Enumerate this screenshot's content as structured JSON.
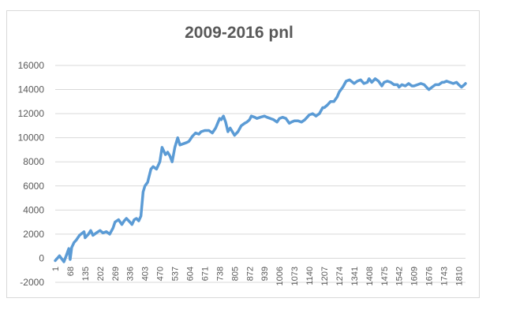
{
  "chart_data": {
    "type": "line",
    "title": "2009-2016 pnl",
    "xlabel": "",
    "ylabel": "",
    "xlim": [
      1,
      1840
    ],
    "ylim": [
      -2000,
      16000
    ],
    "y_ticks": [
      -2000,
      0,
      2000,
      4000,
      6000,
      8000,
      10000,
      12000,
      14000,
      16000
    ],
    "x_tick_labels": [
      "1",
      "68",
      "135",
      "202",
      "269",
      "336",
      "403",
      "470",
      "537",
      "604",
      "671",
      "738",
      "805",
      "872",
      "939",
      "1006",
      "1073",
      "1140",
      "1207",
      "1274",
      "1341",
      "1408",
      "1475",
      "1542",
      "1609",
      "1676",
      "1743",
      "1810"
    ],
    "grid": "horizontal",
    "legend": "none",
    "series_color": "#5b9bd5",
    "series": [
      {
        "x": [
          1,
          20,
          40,
          50,
          62,
          68,
          75,
          85,
          95,
          110,
          130,
          135,
          150,
          160,
          170,
          185,
          202,
          215,
          230,
          245,
          260,
          269,
          285,
          300,
          310,
          320,
          336,
          345,
          355,
          365,
          375,
          385,
          395,
          403,
          415,
          430,
          440,
          455,
          470,
          480,
          495,
          505,
          515,
          525,
          537,
          550,
          560,
          575,
          590,
          600,
          604,
          615,
          630,
          645,
          655,
          671,
          690,
          705,
          720,
          738,
          745,
          755,
          765,
          775,
          785,
          795,
          805,
          820,
          835,
          850,
          860,
          872,
          880,
          895,
          905,
          920,
          939,
          950,
          965,
          980,
          995,
          1006,
          1020,
          1035,
          1050,
          1060,
          1073,
          1090,
          1105,
          1120,
          1140,
          1155,
          1170,
          1185,
          1200,
          1207,
          1220,
          1235,
          1250,
          1265,
          1274,
          1290,
          1305,
          1320,
          1341,
          1355,
          1370,
          1385,
          1400,
          1408,
          1420,
          1435,
          1450,
          1465,
          1475,
          1490,
          1505,
          1520,
          1535,
          1542,
          1555,
          1570,
          1585,
          1600,
          1609,
          1625,
          1640,
          1655,
          1670,
          1676,
          1690,
          1705,
          1720,
          1735,
          1743,
          1755,
          1770,
          1785,
          1800,
          1810,
          1822,
          1835,
          1840
        ],
        "y": [
          -200,
          200,
          -300,
          200,
          800,
          -100,
          900,
          1300,
          1500,
          1900,
          2200,
          1700,
          2000,
          2300,
          1900,
          2100,
          2300,
          2100,
          2200,
          2000,
          2500,
          3000,
          3200,
          2800,
          3100,
          3300,
          3000,
          2800,
          3200,
          3300,
          3100,
          3500,
          5500,
          6000,
          6300,
          7400,
          7600,
          7400,
          8000,
          9200,
          8600,
          8800,
          8500,
          8000,
          9200,
          10000,
          9400,
          9500,
          9600,
          9700,
          9800,
          10100,
          10400,
          10300,
          10500,
          10600,
          10600,
          10400,
          10800,
          11600,
          11500,
          11800,
          11300,
          10500,
          10800,
          10500,
          10200,
          10500,
          11000,
          11200,
          11300,
          11500,
          11800,
          11700,
          11600,
          11700,
          11800,
          11700,
          11600,
          11500,
          11300,
          11600,
          11700,
          11600,
          11200,
          11300,
          11400,
          11400,
          11300,
          11500,
          11900,
          12000,
          11800,
          12000,
          12500,
          12500,
          12700,
          13000,
          13000,
          13400,
          13800,
          14200,
          14700,
          14800,
          14500,
          14700,
          14800,
          14500,
          14600,
          14900,
          14600,
          14900,
          14700,
          14300,
          14600,
          14700,
          14600,
          14400,
          14400,
          14200,
          14400,
          14300,
          14500,
          14300,
          14300,
          14400,
          14500,
          14400,
          14100,
          14000,
          14200,
          14400,
          14400,
          14600,
          14600,
          14700,
          14600,
          14500,
          14600,
          14400,
          14200,
          14400,
          14500
        ]
      }
    ]
  }
}
